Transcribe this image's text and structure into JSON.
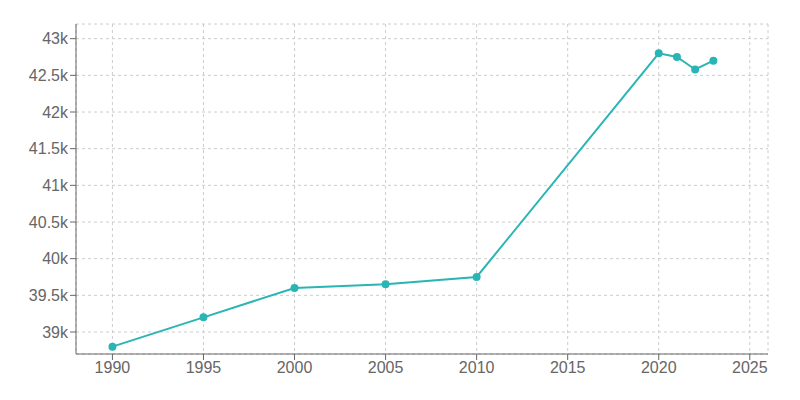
{
  "chart_data": {
    "type": "line",
    "x": [
      1990,
      1995,
      2000,
      2005,
      2010,
      2020,
      2021,
      2022,
      2023
    ],
    "values": [
      38800,
      39200,
      39600,
      39650,
      39750,
      42800,
      42750,
      42580,
      42700
    ],
    "color": "#2ab5b5",
    "marker": "circle",
    "xlim": [
      1988,
      2026
    ],
    "ylim": [
      38700,
      43200
    ],
    "xticks": [
      1990,
      1995,
      2000,
      2005,
      2010,
      2015,
      2020,
      2025
    ],
    "yticks": [
      {
        "value": 39000,
        "label": "39k"
      },
      {
        "value": 39500,
        "label": "39.5k"
      },
      {
        "value": 40000,
        "label": "40k"
      },
      {
        "value": 40500,
        "label": "40.5k"
      },
      {
        "value": 41000,
        "label": "41k"
      },
      {
        "value": 41500,
        "label": "41.5k"
      },
      {
        "value": 42000,
        "label": "42k"
      },
      {
        "value": 42500,
        "label": "42.5k"
      },
      {
        "value": 43000,
        "label": "43k"
      }
    ],
    "grid": true
  }
}
